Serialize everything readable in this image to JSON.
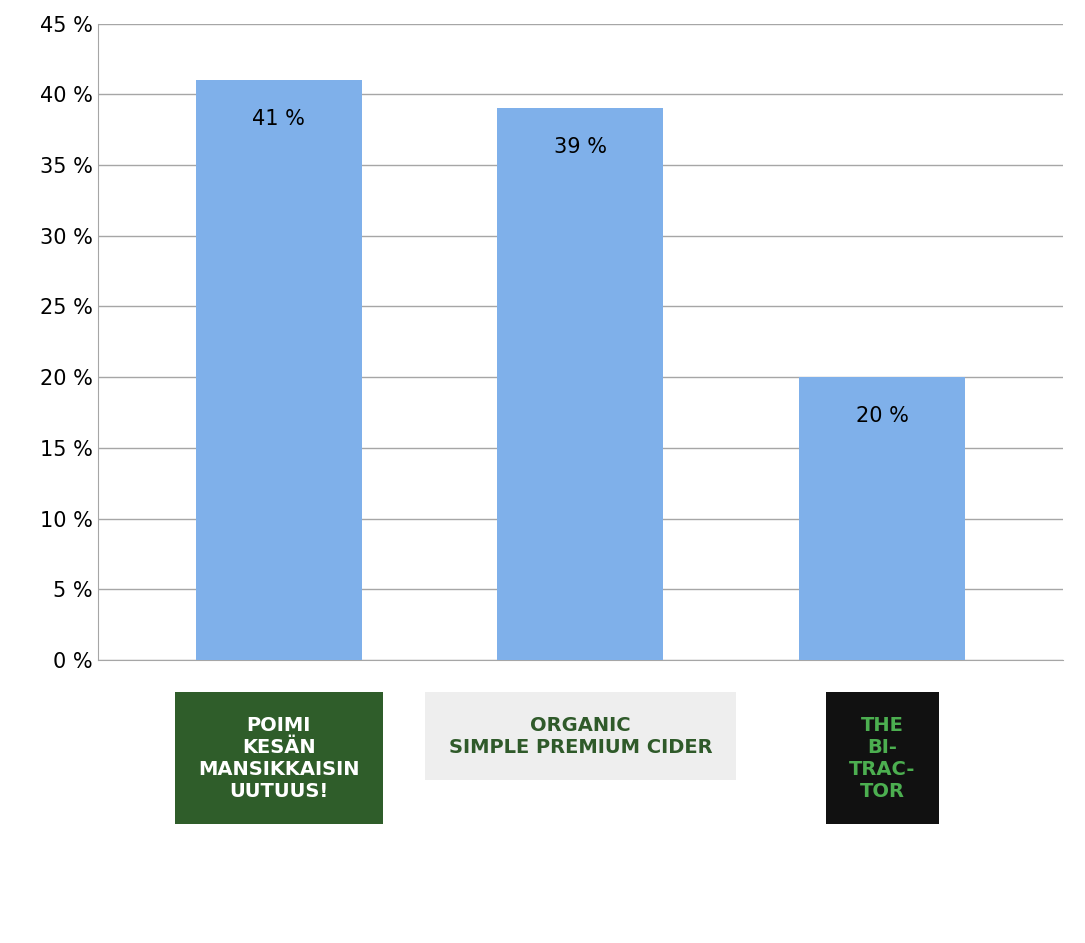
{
  "chart_data": {
    "type": "bar",
    "categories": [
      "POIMI\nKESÄN\nMANSIKKAISIN\nUUTUUS!",
      "ORGANIC\nSIMPLE PREMIUM CIDER",
      "THE\nBI-\nTRAC-\nTOR"
    ],
    "values": [
      41,
      39,
      20
    ],
    "value_labels": [
      "41 %",
      "39 %",
      "20 %"
    ],
    "data_labels": true,
    "color": "#7fb0ea",
    "ylim": [
      0,
      45
    ],
    "yticks": [
      {
        "value": 0,
        "label": "0 %"
      },
      {
        "value": 5,
        "label": "5 %"
      },
      {
        "value": 10,
        "label": "10 %"
      },
      {
        "value": 15,
        "label": "15 %"
      },
      {
        "value": 20,
        "label": "20 %"
      },
      {
        "value": 25,
        "label": "25 %"
      },
      {
        "value": 30,
        "label": "30 %"
      },
      {
        "value": 35,
        "label": "35 %"
      },
      {
        "value": 40,
        "label": "40 %"
      },
      {
        "value": 45,
        "label": "45 %"
      }
    ],
    "grid": true
  }
}
